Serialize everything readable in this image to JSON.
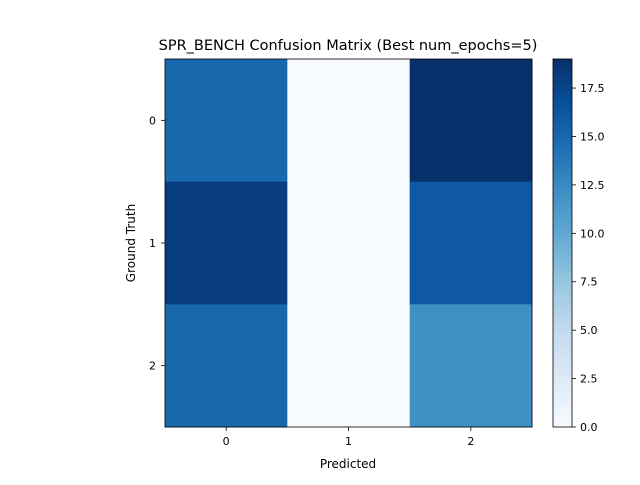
{
  "chart_data": {
    "type": "heatmap",
    "title": "SPR_BENCH Confusion Matrix (Best num_epochs=5)",
    "xlabel": "Predicted",
    "ylabel": "Ground Truth",
    "x_categories": [
      "0",
      "1",
      "2"
    ],
    "y_categories": [
      "0",
      "1",
      "2"
    ],
    "matrix": [
      [
        15,
        0,
        19
      ],
      [
        18,
        0,
        16
      ],
      [
        15,
        0,
        12
      ]
    ],
    "colormap": "Blues",
    "color_range": [
      0,
      19
    ],
    "colorbar_ticks": [
      "0.0",
      "2.5",
      "5.0",
      "7.5",
      "10.0",
      "12.5",
      "15.0",
      "17.5"
    ],
    "grid": false
  }
}
